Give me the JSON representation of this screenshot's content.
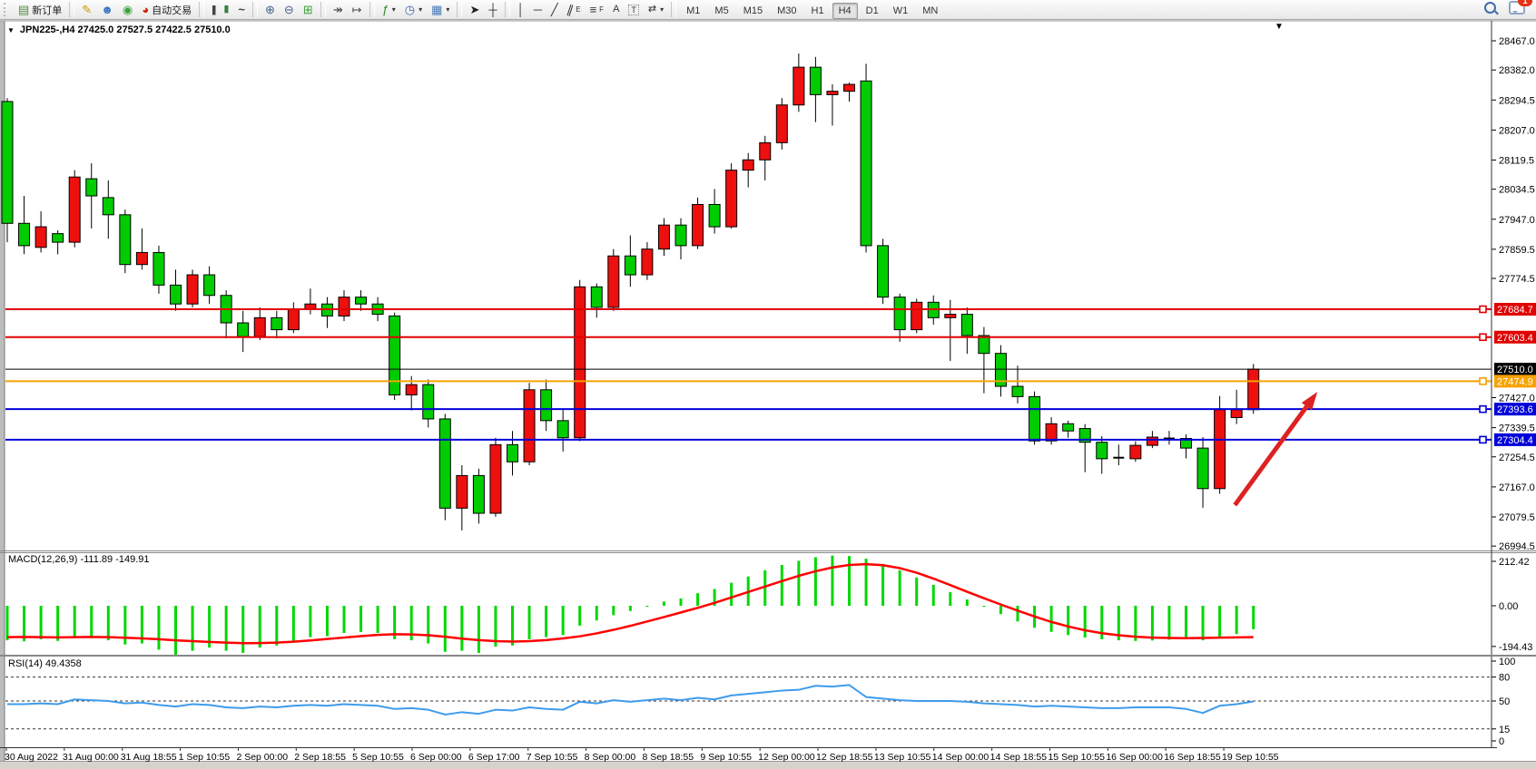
{
  "toolbar": {
    "new_order": "新订单",
    "auto_trading": "自动交易",
    "timeframes": [
      "M1",
      "M5",
      "M15",
      "M30",
      "H1",
      "H4",
      "D1",
      "W1",
      "MN"
    ],
    "active_timeframe": "H4",
    "chat_badge": "1"
  },
  "chart_window": {
    "title": "JPN225-,H4  27425.0 27527.5 27422.5 27510.0",
    "symbol": "JPN225-",
    "period": "H4",
    "open": "27425.0",
    "high": "27527.5",
    "low": "27422.5",
    "close": "27510.0"
  },
  "chart_data": [
    {
      "type": "candlestick",
      "title": "JPN225-,H4",
      "symbol": "JPN225-",
      "timeframe": "H4",
      "up_color": "#ee0f0f",
      "down_color": "#00cc00",
      "grid": "off",
      "ylim": [
        26950,
        28510
      ],
      "candles": [
        [
          28290,
          28300,
          27880,
          27935
        ],
        [
          27935,
          28015,
          27845,
          27870
        ],
        [
          27865,
          27970,
          27850,
          27925
        ],
        [
          27905,
          27915,
          27845,
          27880
        ],
        [
          27880,
          28090,
          27865,
          28070
        ],
        [
          28065,
          28110,
          27920,
          28015
        ],
        [
          28010,
          28060,
          27890,
          27960
        ],
        [
          27960,
          27975,
          27790,
          27815
        ],
        [
          27815,
          27920,
          27800,
          27850
        ],
        [
          27850,
          27870,
          27730,
          27755
        ],
        [
          27755,
          27800,
          27680,
          27700
        ],
        [
          27700,
          27800,
          27690,
          27785
        ],
        [
          27785,
          27810,
          27700,
          27725
        ],
        [
          27725,
          27740,
          27600,
          27645
        ],
        [
          27645,
          27680,
          27560,
          27605
        ],
        [
          27605,
          27690,
          27595,
          27660
        ],
        [
          27660,
          27680,
          27600,
          27625
        ],
        [
          27625,
          27705,
          27615,
          27685
        ],
        [
          27685,
          27745,
          27670,
          27700
        ],
        [
          27700,
          27720,
          27630,
          27665
        ],
        [
          27665,
          27740,
          27650,
          27720
        ],
        [
          27720,
          27740,
          27680,
          27700
        ],
        [
          27700,
          27720,
          27650,
          27670
        ],
        [
          27665,
          27675,
          27420,
          27435
        ],
        [
          27435,
          27490,
          27390,
          27465
        ],
        [
          27465,
          27480,
          27340,
          27365
        ],
        [
          27365,
          27380,
          27070,
          27105
        ],
        [
          27105,
          27230,
          27040,
          27200
        ],
        [
          27200,
          27220,
          27060,
          27090
        ],
        [
          27090,
          27310,
          27080,
          27290
        ],
        [
          27290,
          27330,
          27200,
          27240
        ],
        [
          27240,
          27470,
          27230,
          27450
        ],
        [
          27450,
          27480,
          27330,
          27360
        ],
        [
          27360,
          27395,
          27270,
          27310
        ],
        [
          27310,
          27770,
          27300,
          27750
        ],
        [
          27750,
          27760,
          27660,
          27690
        ],
        [
          27690,
          27860,
          27680,
          27840
        ],
        [
          27840,
          27900,
          27750,
          27785
        ],
        [
          27785,
          27880,
          27770,
          27860
        ],
        [
          27860,
          27950,
          27840,
          27930
        ],
        [
          27930,
          27950,
          27830,
          27870
        ],
        [
          27870,
          28010,
          27860,
          27990
        ],
        [
          27990,
          28035,
          27905,
          27925
        ],
        [
          27925,
          28110,
          27920,
          28090
        ],
        [
          28090,
          28140,
          28040,
          28120
        ],
        [
          28120,
          28190,
          28060,
          28170
        ],
        [
          28170,
          28300,
          28150,
          28280
        ],
        [
          28280,
          28430,
          28260,
          28390
        ],
        [
          28390,
          28420,
          28230,
          28310
        ],
        [
          28310,
          28340,
          28220,
          28320
        ],
        [
          28320,
          28345,
          28290,
          28340
        ],
        [
          28350,
          28400,
          27850,
          27870
        ],
        [
          27870,
          27890,
          27700,
          27720
        ],
        [
          27720,
          27730,
          27590,
          27625
        ],
        [
          27625,
          27715,
          27615,
          27705
        ],
        [
          27705,
          27725,
          27640,
          27660
        ],
        [
          27660,
          27712,
          27534,
          27670
        ],
        [
          27670,
          27690,
          27555,
          27608
        ],
        [
          27608,
          27633,
          27440,
          27556
        ],
        [
          27556,
          27580,
          27430,
          27460
        ],
        [
          27460,
          27520,
          27410,
          27430
        ],
        [
          27430,
          27445,
          27290,
          27301
        ],
        [
          27301,
          27370,
          27290,
          27351
        ],
        [
          27351,
          27360,
          27310,
          27330
        ],
        [
          27337,
          27350,
          27210,
          27297
        ],
        [
          27297,
          27315,
          27205,
          27249
        ],
        [
          27249,
          27290,
          27230,
          27252
        ],
        [
          27249,
          27300,
          27240,
          27288
        ],
        [
          27288,
          27330,
          27280,
          27312
        ],
        [
          27312,
          27330,
          27290,
          27308
        ],
        [
          27308,
          27320,
          27250,
          27280
        ],
        [
          27280,
          27312,
          27106,
          27162
        ],
        [
          27162,
          27432,
          27147,
          27392
        ],
        [
          27369,
          27450,
          27350,
          27392
        ],
        [
          27392,
          27525,
          27380,
          27510
        ]
      ],
      "x_labels": [
        "30 Aug 2022",
        "31 Aug 00:00",
        "31 Aug 18:55",
        "1 Sep 10:55",
        "2 Sep 00:00",
        "2 Sep 18:55",
        "5 Sep 10:55",
        "6 Sep 00:00",
        "6 Sep 17:00",
        "7 Sep 10:55",
        "8 Sep 00:00",
        "8 Sep 18:55",
        "9 Sep 10:55",
        "12 Sep 00:00",
        "12 Sep 18:55",
        "13 Sep 10:55",
        "14 Sep 00:00",
        "14 Sep 18:55",
        "15 Sep 10:55",
        "16 Sep 00:00",
        "16 Sep 18:55",
        "19 Sep 10:55"
      ],
      "y_tick_labels": [
        "28467.0",
        "28382.0",
        "28294.5",
        "28207.0",
        "28119.5",
        "28034.5",
        "27947.0",
        "27859.5",
        "27774.5",
        "27427.0",
        "27339.5",
        "27254.5",
        "27167.0",
        "27079.5",
        "26994.5"
      ],
      "levels": [
        {
          "price": 27684.7,
          "label": "27684.7",
          "color": "#e00000",
          "width": 2,
          "marker": true
        },
        {
          "price": 27603.4,
          "label": "27603.4",
          "color": "#e00000",
          "width": 2,
          "marker": true
        },
        {
          "price": 27510.0,
          "label": "27510.0",
          "color": "#000000",
          "width": 1,
          "marker": false
        },
        {
          "price": 27474.9,
          "label": "27474.9",
          "color": "#f7a200",
          "width": 2,
          "marker": true
        },
        {
          "price": 27393.6,
          "label": "27393.6",
          "color": "#0000d9",
          "width": 2,
          "marker": true
        },
        {
          "price": 27304.4,
          "label": "27304.4",
          "color": "#0000d9",
          "width": 2,
          "marker": true
        }
      ],
      "annotations": [
        {
          "type": "arrow",
          "color": "#dd2222",
          "from_bar": 72.9,
          "from_price": 27114,
          "to_bar": 77.8,
          "to_price": 27444
        }
      ]
    },
    {
      "type": "bar",
      "title": "MACD(12,26,9)",
      "label": "MACD(12,26,9) -111.89 -149.91",
      "macd_value": "-111.89",
      "signal_value": "-149.91",
      "histogram_color": "#00d800",
      "signal_color": "#ff0000",
      "ylim": [
        -225,
        250
      ],
      "y_tick_labels": [
        "212.42",
        "0.00",
        "-194.43"
      ],
      "y_tick_values": [
        212.42,
        0.0,
        -194.43
      ],
      "histogram": [
        -165,
        -170,
        -160,
        -168,
        -150,
        -155,
        -165,
        -185,
        -180,
        -210,
        -235,
        -215,
        -200,
        -215,
        -225,
        -200,
        -190,
        -170,
        -150,
        -145,
        -130,
        -125,
        -130,
        -160,
        -165,
        -180,
        -220,
        -215,
        -225,
        -195,
        -190,
        -160,
        -150,
        -140,
        -95,
        -70,
        -45,
        -25,
        -5,
        20,
        35,
        60,
        80,
        110,
        140,
        170,
        195,
        215,
        232,
        240,
        238,
        225,
        200,
        170,
        135,
        100,
        65,
        30,
        -5,
        -40,
        -75,
        -105,
        -125,
        -140,
        -152,
        -160,
        -165,
        -168,
        -166,
        -162,
        -158,
        -165,
        -155,
        -135,
        -112
      ],
      "signal": [
        -150,
        -149,
        -150,
        -151,
        -150,
        -149,
        -150,
        -153,
        -156,
        -160,
        -165,
        -169,
        -173,
        -176,
        -179,
        -178,
        -176,
        -172,
        -166,
        -159,
        -152,
        -145,
        -139,
        -136,
        -137,
        -141,
        -148,
        -157,
        -164,
        -169,
        -171,
        -169,
        -164,
        -156,
        -146,
        -132,
        -115,
        -96,
        -75,
        -54,
        -32,
        -10,
        14,
        40,
        66,
        92,
        118,
        143,
        165,
        183,
        195,
        199,
        194,
        180,
        158,
        130,
        99,
        67,
        36,
        6,
        -23,
        -51,
        -77,
        -99,
        -117,
        -131,
        -141,
        -148,
        -152,
        -154,
        -155,
        -154,
        -152,
        -151,
        -150
      ]
    },
    {
      "type": "line",
      "title": "RSI(14)",
      "label": "RSI(14) 49.4358",
      "value": "49.4358",
      "line_color": "#3e9ceb",
      "ylim": [
        0,
        100
      ],
      "levels": [
        80,
        50,
        15
      ],
      "y_tick_labels": [
        "100",
        "80",
        "50",
        "15",
        "0"
      ],
      "y_tick_values": [
        100,
        80,
        50,
        15,
        0
      ],
      "values": [
        46,
        46,
        47,
        46,
        52,
        51,
        50,
        47,
        48,
        45,
        43,
        46,
        45,
        42,
        41,
        43,
        42,
        44,
        45,
        44,
        46,
        45,
        44,
        40,
        41,
        39,
        33,
        36,
        34,
        39,
        38,
        42,
        40,
        39,
        49,
        47,
        51,
        49,
        51,
        53,
        51,
        54,
        52,
        57,
        59,
        61,
        63,
        64,
        69,
        68,
        70,
        55,
        53,
        51,
        50,
        50,
        50,
        49,
        47,
        46,
        45,
        43,
        44,
        43,
        42,
        41,
        41,
        42,
        42,
        42,
        40,
        35,
        44,
        46,
        49.4
      ]
    }
  ]
}
